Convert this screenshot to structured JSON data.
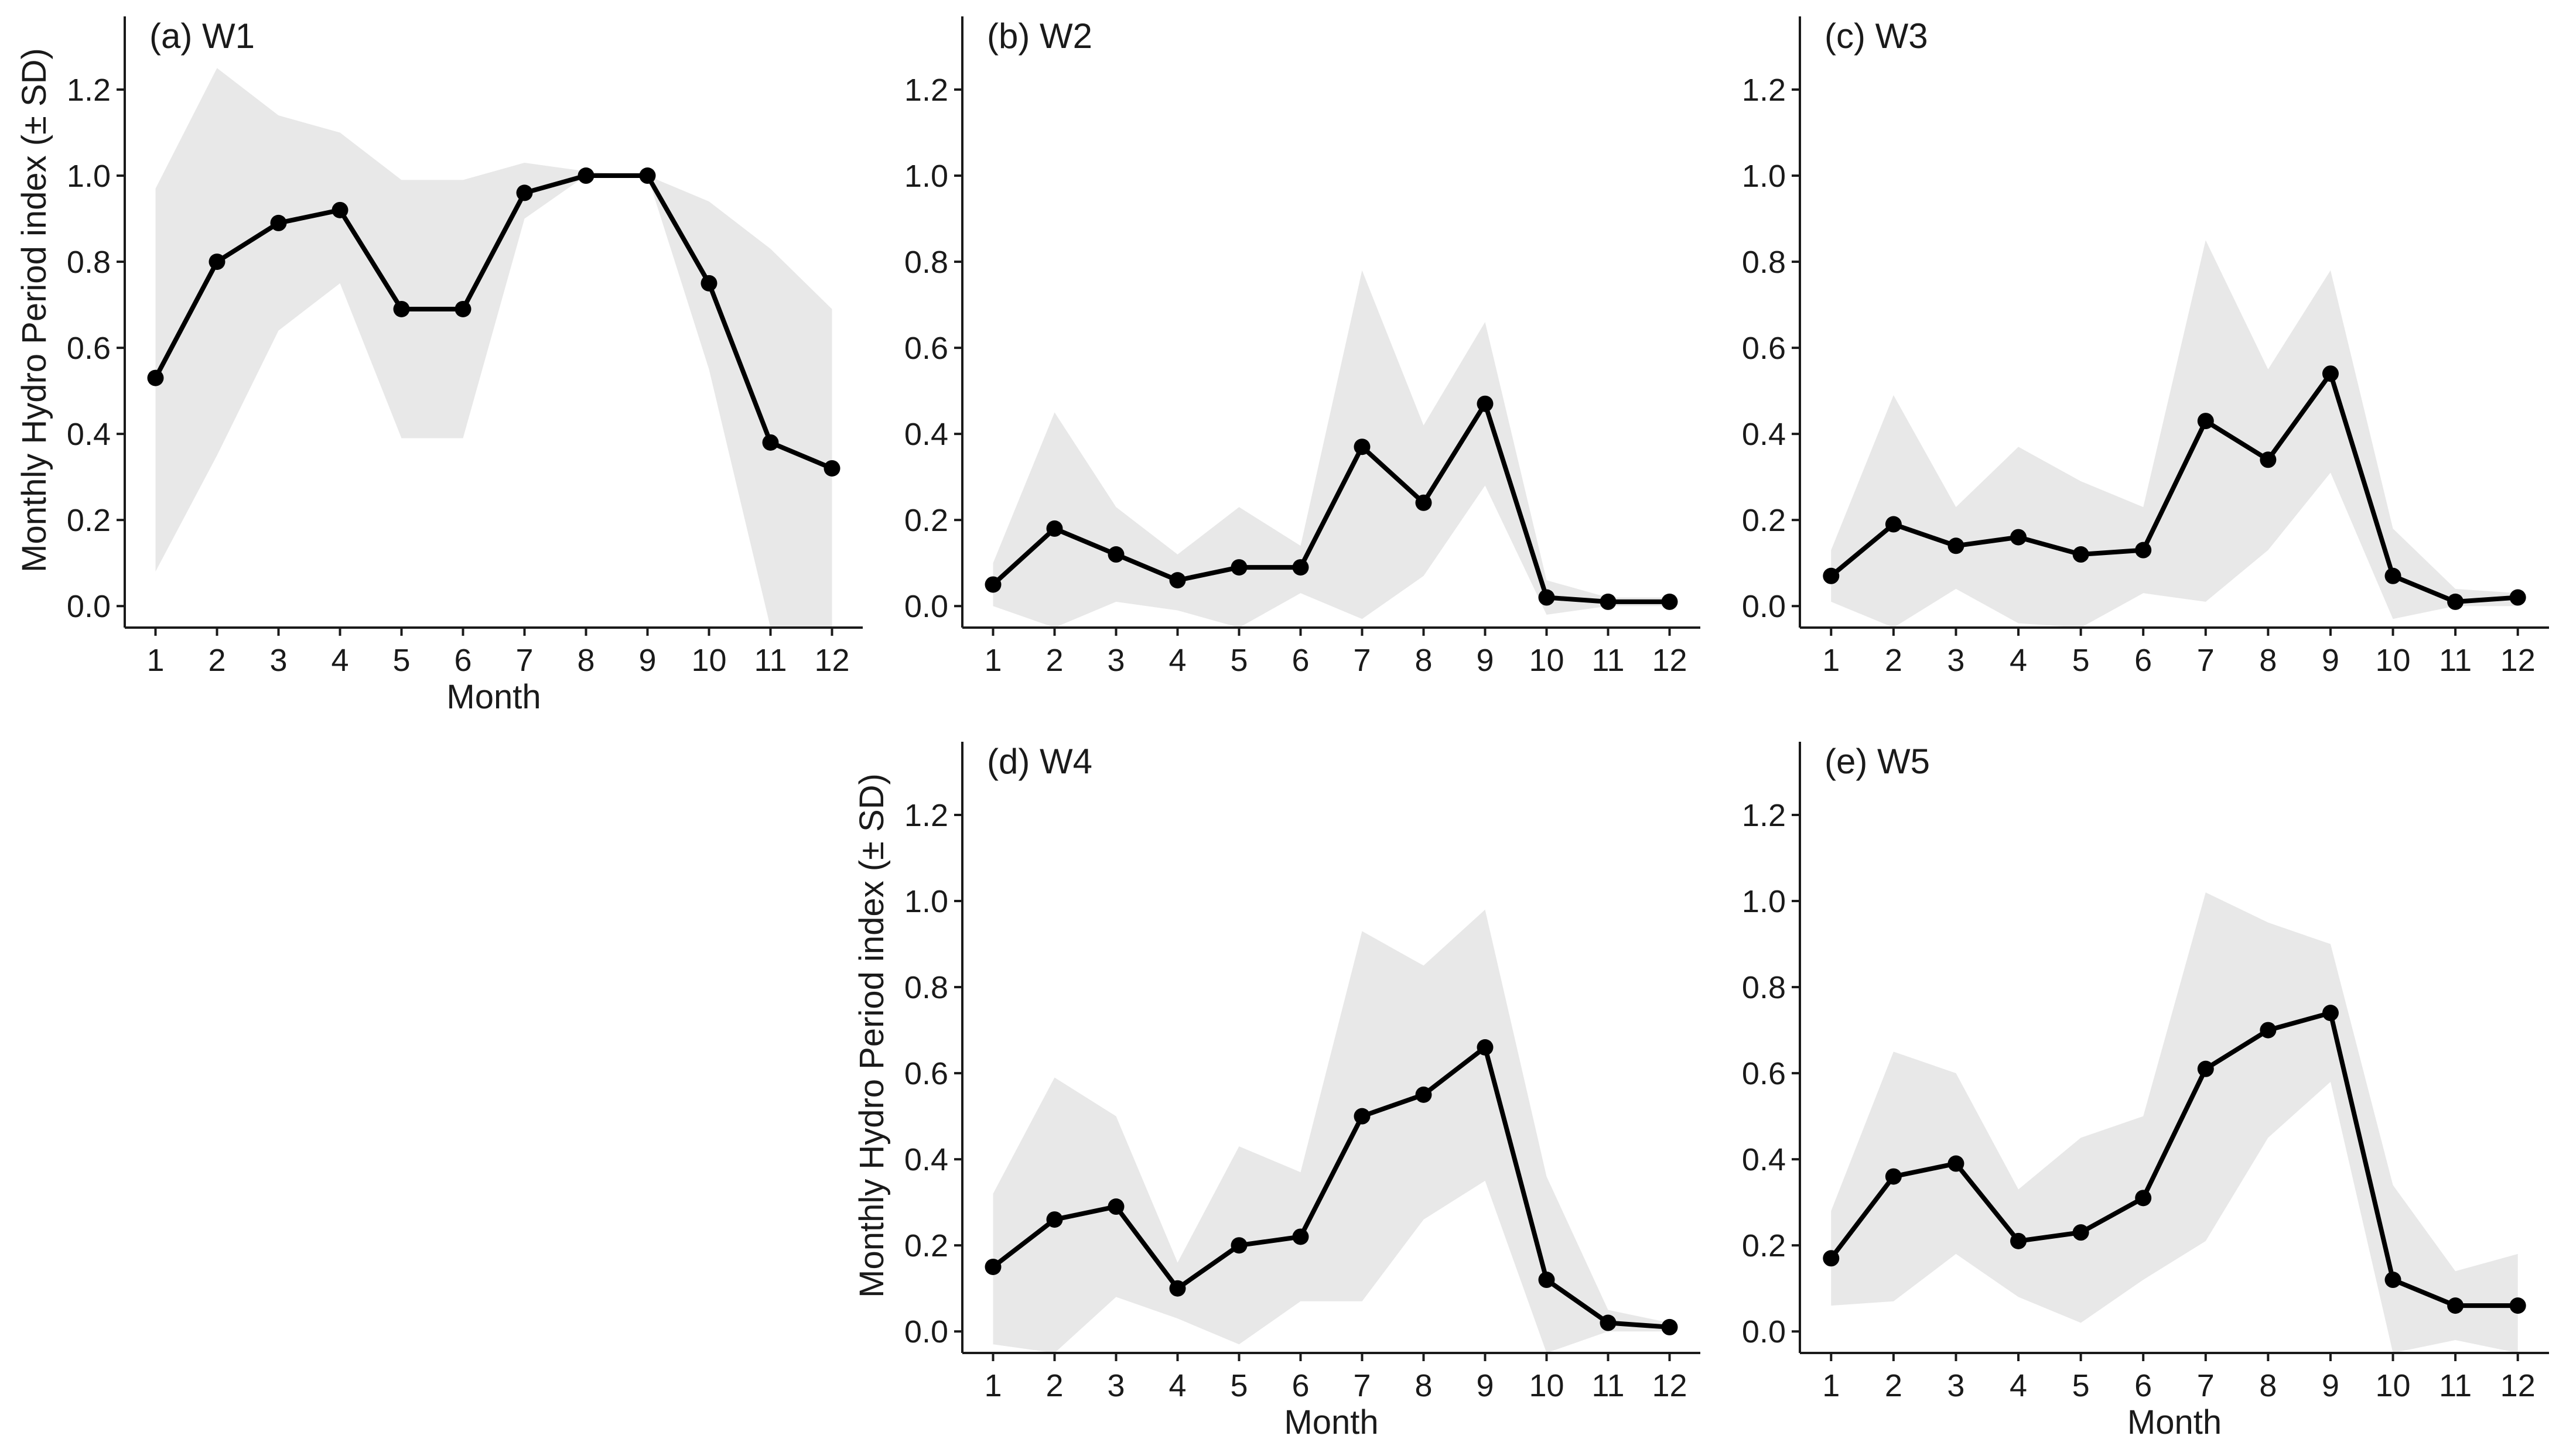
{
  "chart_data": [
    {
      "type": "line",
      "title": "(a) W1",
      "xlabel": "Month",
      "ylabel": "Monthly Hydro Period index (± SD)",
      "x": [
        1,
        2,
        3,
        4,
        5,
        6,
        7,
        8,
        9,
        10,
        11,
        12
      ],
      "values": [
        0.53,
        0.8,
        0.89,
        0.92,
        0.69,
        0.69,
        0.96,
        1.0,
        1.0,
        0.75,
        0.38,
        0.32
      ],
      "band_upper": [
        0.97,
        1.25,
        1.14,
        1.1,
        0.99,
        0.99,
        1.03,
        1.01,
        1.0,
        0.94,
        0.83,
        0.69
      ],
      "band_lower": [
        0.08,
        0.35,
        0.64,
        0.75,
        0.39,
        0.39,
        0.9,
        1.0,
        1.0,
        0.55,
        -0.07,
        -0.05
      ],
      "xlim": [
        0.5,
        12.5
      ],
      "ylim": [
        -0.05,
        1.37
      ],
      "yticks": [
        "0.0",
        "0.2",
        "0.4",
        "0.6",
        "0.8",
        "1.0",
        "1.2"
      ],
      "xticks": [
        "1",
        "2",
        "3",
        "4",
        "5",
        "6",
        "7",
        "8",
        "9",
        "10",
        "11",
        "12"
      ]
    },
    {
      "type": "line",
      "title": "(b) W2",
      "xlabel": "",
      "ylabel": "",
      "x": [
        1,
        2,
        3,
        4,
        5,
        6,
        7,
        8,
        9,
        10,
        11,
        12
      ],
      "values": [
        0.05,
        0.18,
        0.12,
        0.06,
        0.09,
        0.09,
        0.37,
        0.24,
        0.47,
        0.02,
        0.01,
        0.01
      ],
      "band_upper": [
        0.1,
        0.45,
        0.23,
        0.12,
        0.23,
        0.14,
        0.78,
        0.42,
        0.66,
        0.06,
        0.02,
        0.02
      ],
      "band_lower": [
        0.0,
        -0.06,
        0.01,
        -0.01,
        -0.05,
        0.03,
        -0.03,
        0.07,
        0.28,
        -0.02,
        0.0,
        0.0
      ],
      "xlim": [
        0.5,
        12.5
      ],
      "ylim": [
        -0.05,
        1.37
      ],
      "yticks": [
        "0.0",
        "0.2",
        "0.4",
        "0.6",
        "0.8",
        "1.0",
        "1.2"
      ],
      "xticks": [
        "1",
        "2",
        "3",
        "4",
        "5",
        "6",
        "7",
        "8",
        "9",
        "10",
        "11",
        "12"
      ]
    },
    {
      "type": "line",
      "title": "(c) W3",
      "xlabel": "",
      "ylabel": "",
      "x": [
        1,
        2,
        3,
        4,
        5,
        6,
        7,
        8,
        9,
        10,
        11,
        12
      ],
      "values": [
        0.07,
        0.19,
        0.14,
        0.16,
        0.12,
        0.13,
        0.43,
        0.34,
        0.54,
        0.07,
        0.01,
        0.02
      ],
      "band_upper": [
        0.13,
        0.49,
        0.23,
        0.37,
        0.29,
        0.23,
        0.85,
        0.55,
        0.78,
        0.18,
        0.04,
        0.03
      ],
      "band_lower": [
        0.01,
        -0.06,
        0.04,
        -0.04,
        -0.05,
        0.03,
        0.01,
        0.13,
        0.31,
        -0.03,
        0.0,
        0.0
      ],
      "xlim": [
        0.5,
        12.5
      ],
      "ylim": [
        -0.05,
        1.37
      ],
      "yticks": [
        "0.0",
        "0.2",
        "0.4",
        "0.6",
        "0.8",
        "1.0",
        "1.2"
      ],
      "xticks": [
        "1",
        "2",
        "3",
        "4",
        "5",
        "6",
        "7",
        "8",
        "9",
        "10",
        "11",
        "12"
      ]
    },
    {
      "type": "line",
      "title": "(d) W4",
      "xlabel": "Month",
      "ylabel": "Monthly Hydro Period index (± SD)",
      "x": [
        1,
        2,
        3,
        4,
        5,
        6,
        7,
        8,
        9,
        10,
        11,
        12
      ],
      "values": [
        0.15,
        0.26,
        0.29,
        0.1,
        0.2,
        0.22,
        0.5,
        0.55,
        0.66,
        0.12,
        0.02,
        0.01
      ],
      "band_upper": [
        0.32,
        0.59,
        0.5,
        0.16,
        0.43,
        0.37,
        0.93,
        0.85,
        0.98,
        0.36,
        0.05,
        0.02
      ],
      "band_lower": [
        -0.03,
        -0.06,
        0.08,
        0.03,
        -0.03,
        0.07,
        0.07,
        0.26,
        0.35,
        -0.07,
        0.0,
        0.0
      ],
      "xlim": [
        0.5,
        12.5
      ],
      "ylim": [
        -0.05,
        1.37
      ],
      "yticks": [
        "0.0",
        "0.2",
        "0.4",
        "0.6",
        "0.8",
        "1.0",
        "1.2"
      ],
      "xticks": [
        "1",
        "2",
        "3",
        "4",
        "5",
        "6",
        "7",
        "8",
        "9",
        "10",
        "11",
        "12"
      ]
    },
    {
      "type": "line",
      "title": "(e) W5",
      "xlabel": "Month",
      "ylabel": "",
      "x": [
        1,
        2,
        3,
        4,
        5,
        6,
        7,
        8,
        9,
        10,
        11,
        12
      ],
      "values": [
        0.17,
        0.36,
        0.39,
        0.21,
        0.23,
        0.31,
        0.61,
        0.7,
        0.74,
        0.12,
        0.06,
        0.06
      ],
      "band_upper": [
        0.28,
        0.65,
        0.6,
        0.33,
        0.45,
        0.5,
        1.02,
        0.95,
        0.9,
        0.34,
        0.14,
        0.18
      ],
      "band_lower": [
        0.06,
        0.07,
        0.18,
        0.08,
        0.02,
        0.12,
        0.21,
        0.45,
        0.58,
        -0.08,
        -0.02,
        -0.05
      ],
      "xlim": [
        0.5,
        12.5
      ],
      "ylim": [
        -0.05,
        1.37
      ],
      "yticks": [
        "0.0",
        "0.2",
        "0.4",
        "0.6",
        "0.8",
        "1.0",
        "1.2"
      ],
      "xticks": [
        "1",
        "2",
        "3",
        "4",
        "5",
        "6",
        "7",
        "8",
        "9",
        "10",
        "11",
        "12"
      ]
    }
  ]
}
